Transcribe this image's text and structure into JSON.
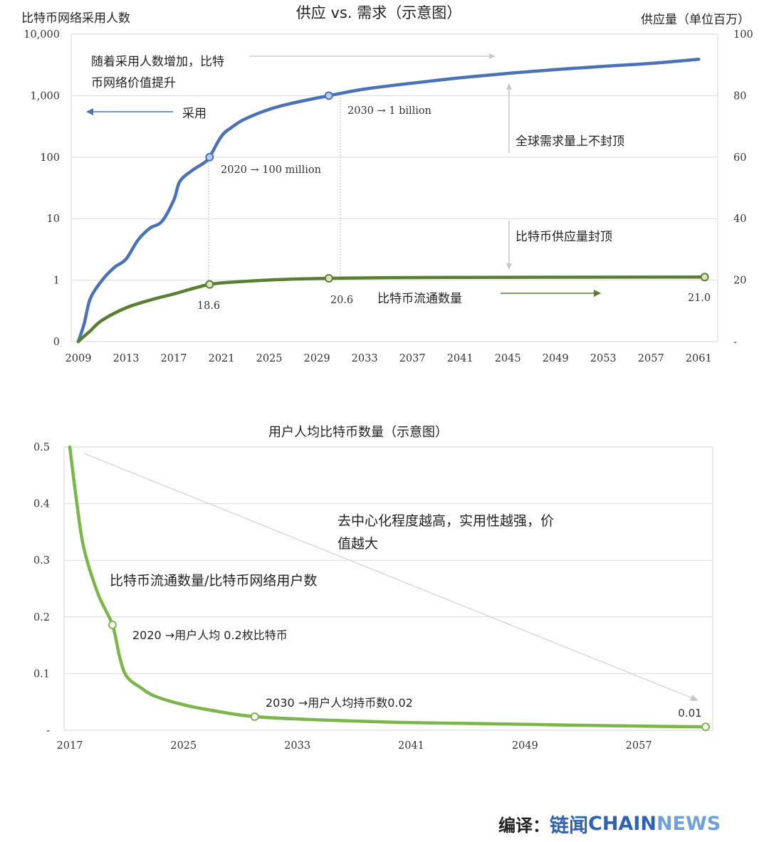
{
  "chart_data": [
    {
      "type": "line",
      "title": "供应 vs. 需求（示意图）",
      "y_left_label": "比特币网络采用人数",
      "y_right_label": "供应量（单位百万）",
      "y_left_scale": "log",
      "y_left_ticks": [
        "0",
        "1",
        "10",
        "100",
        "1,000",
        "10,000"
      ],
      "y_right_ticks": [
        "-",
        "20",
        "40",
        "60",
        "80",
        "100"
      ],
      "y_right_range": [
        0,
        100
      ],
      "x_ticks": [
        "2009",
        "2013",
        "2017",
        "2021",
        "2025",
        "2029",
        "2033",
        "2037",
        "2041",
        "2045",
        "2049",
        "2053",
        "2057",
        "2061"
      ],
      "grid": true,
      "series": [
        {
          "axis": "left",
          "color": "#4a72b8",
          "points": [
            [
              2009,
              0.1
            ],
            [
              2009.5,
              0.2
            ],
            [
              2010,
              0.5
            ],
            [
              2011,
              1.0
            ],
            [
              2012,
              1.6
            ],
            [
              2013,
              2.2
            ],
            [
              2014,
              4.5
            ],
            [
              2015,
              7
            ],
            [
              2016,
              9
            ],
            [
              2017,
              20
            ],
            [
              2017.5,
              40
            ],
            [
              2018.5,
              60
            ],
            [
              2019.5,
              80
            ],
            [
              2020,
              100
            ],
            [
              2021,
              220
            ],
            [
              2022,
              320
            ],
            [
              2023,
              420
            ],
            [
              2025,
              600
            ],
            [
              2027,
              760
            ],
            [
              2030,
              1000
            ],
            [
              2033,
              1280
            ],
            [
              2037,
              1600
            ],
            [
              2041,
              1950
            ],
            [
              2045,
              2300
            ],
            [
              2049,
              2650
            ],
            [
              2053,
              3000
            ],
            [
              2057,
              3350
            ],
            [
              2061,
              3900
            ]
          ]
        },
        {
          "axis": "right",
          "color": "#5a7f31",
          "points": [
            [
              2009,
              0.1
            ],
            [
              2010,
              3.5
            ],
            [
              2011,
              7
            ],
            [
              2013,
              11
            ],
            [
              2015,
              13.5
            ],
            [
              2017,
              15.5
            ],
            [
              2020,
              18.6
            ],
            [
              2023,
              19.6
            ],
            [
              2026,
              20.2
            ],
            [
              2030,
              20.6
            ],
            [
              2035,
              20.8
            ],
            [
              2045,
              20.92
            ],
            [
              2055,
              20.97
            ],
            [
              2061.5,
              21.0
            ]
          ]
        }
      ],
      "markers": [
        {
          "series": 0,
          "x": 2020,
          "y": 100
        },
        {
          "series": 0,
          "x": 2030,
          "y": 1000
        },
        {
          "series": 1,
          "x": 2020,
          "y": 18.6
        },
        {
          "series": 1,
          "x": 2030,
          "y": 20.6
        },
        {
          "series": 1,
          "x": 2061.5,
          "y": 21.0
        }
      ],
      "annotations": {
        "top_left_text_1": "随着采用人数增加，比特",
        "top_left_text_2": "币网络价值提升",
        "adoption_label": "采用",
        "label_2030": "2030 → 1 billion",
        "label_2020": "2020 → 100 million",
        "demand_label": "全球需求量上不封顶",
        "supply_cap_label": "比特币供应量封顶",
        "circulating_label": "比特币流通数量",
        "val_186": "18.6",
        "val_206": "20.6",
        "val_210": "21.0"
      }
    },
    {
      "type": "line",
      "title": "用户人均比特币数量（示意图）",
      "y_ticks": [
        "-",
        "0.1",
        "0.2",
        "0.3",
        "0.4",
        "0.5"
      ],
      "ylim": [
        0,
        0.5
      ],
      "x_ticks": [
        "2017",
        "2025",
        "2033",
        "2041",
        "2049",
        "2057"
      ],
      "grid": true,
      "series": [
        {
          "color": "#7ab648",
          "points": [
            [
              2017,
              0.5
            ],
            [
              2017.5,
              0.4
            ],
            [
              2018,
              0.32
            ],
            [
              2019,
              0.24
            ],
            [
              2020,
              0.186
            ],
            [
              2020.5,
              0.13
            ],
            [
              2021,
              0.095
            ],
            [
              2022,
              0.075
            ],
            [
              2023,
              0.06
            ],
            [
              2025,
              0.045
            ],
            [
              2027,
              0.035
            ],
            [
              2030,
              0.024
            ],
            [
              2035,
              0.018
            ],
            [
              2040,
              0.014
            ],
            [
              2045,
              0.012
            ],
            [
              2050,
              0.01
            ],
            [
              2055,
              0.008
            ],
            [
              2061.7,
              0.006
            ]
          ]
        }
      ],
      "markers": [
        {
          "x": 2020,
          "y": 0.186
        },
        {
          "x": 2030,
          "y": 0.024
        },
        {
          "x": 2061.7,
          "y": 0.006
        }
      ],
      "annotations": {
        "decentral_1": "去中心化程度越高，实用性越强，价",
        "decentral_2": "值越大",
        "series_label": "比特币流通数量/比特币网络用户数",
        "label_2020": "2020 →用户人均 0.2枚比特币",
        "label_2030": "2030 →用户人均持币数0.02",
        "val_001": "0.01"
      }
    }
  ],
  "footer": {
    "prefix": "编译：",
    "brand_cn": "链闻",
    "brand_chain": "CHAIN",
    "brand_news": "NEWS"
  }
}
